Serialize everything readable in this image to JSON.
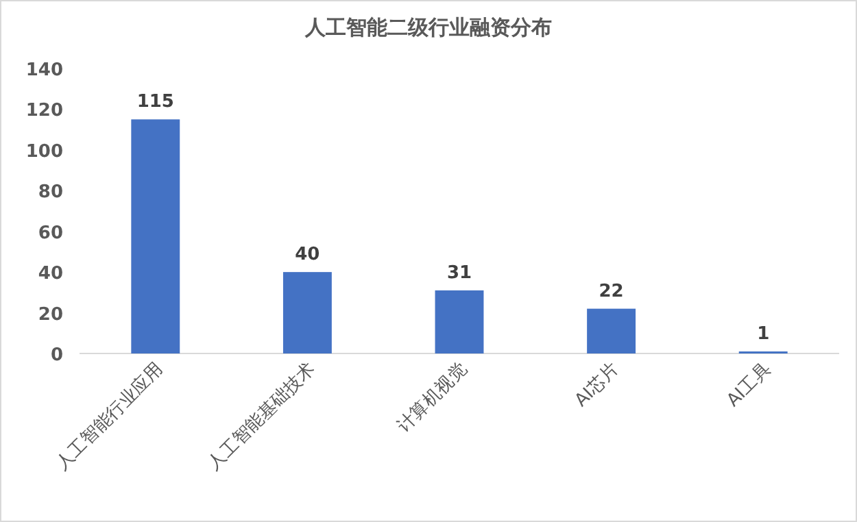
{
  "chart_data": {
    "type": "bar",
    "title": "人工智能二级行业融资分布",
    "categories": [
      "人工智能行业应用",
      "人工智能基础技术",
      "计算机视觉",
      "AI芯片",
      "AI工具"
    ],
    "values": [
      115,
      40,
      31,
      22,
      1
    ],
    "color": "#4472c4",
    "ylim": [
      0,
      140
    ],
    "yticks": [
      0,
      20,
      40,
      60,
      80,
      100,
      120,
      140
    ],
    "data_labels": true
  }
}
